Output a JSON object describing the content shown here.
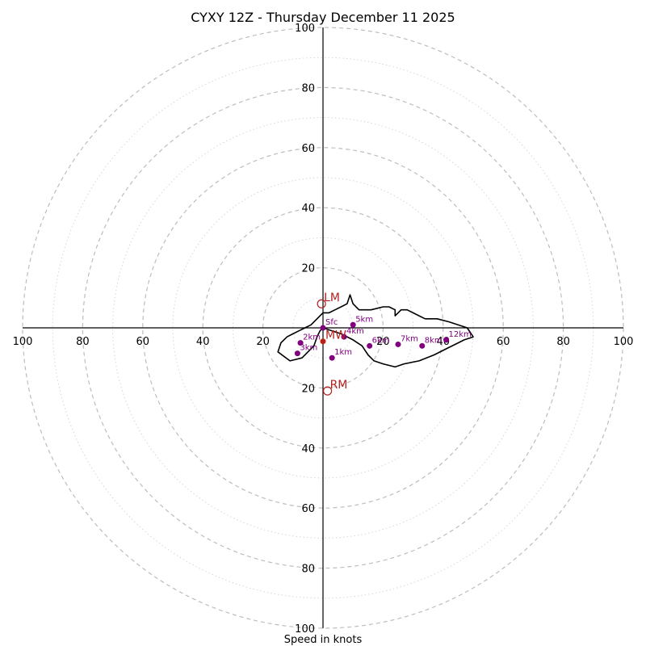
{
  "chart_data": {
    "type": "hodograph",
    "title": "CYXY 12Z - Thursday December 11 2025",
    "xlabel": "Speed in knots",
    "units": "knots",
    "range_max": 100,
    "rings_major": [
      20,
      40,
      60,
      80,
      100
    ],
    "rings_minor": [
      10,
      30,
      50,
      70,
      90
    ],
    "tick_labels": [
      "20",
      "40",
      "60",
      "80",
      "100"
    ],
    "trace_color": "#000000",
    "point_color": "#800080",
    "motion_color": "#b22222",
    "trace": [
      [
        0,
        0
      ],
      [
        3,
        -1
      ],
      [
        6,
        -2
      ],
      [
        10,
        -4
      ],
      [
        13,
        -6
      ],
      [
        15,
        -9
      ],
      [
        17,
        -11
      ],
      [
        20,
        -12
      ],
      [
        24,
        -13
      ],
      [
        27,
        -12
      ],
      [
        32,
        -11
      ],
      [
        37,
        -9
      ],
      [
        41,
        -7
      ],
      [
        45,
        -5
      ],
      [
        47,
        -4
      ],
      [
        50,
        -3
      ],
      [
        48,
        0
      ],
      [
        42,
        2
      ],
      [
        38,
        3
      ],
      [
        34,
        3
      ],
      [
        32,
        4
      ],
      [
        30,
        5
      ],
      [
        28,
        6
      ],
      [
        26,
        6
      ],
      [
        25,
        5
      ],
      [
        24,
        4
      ],
      [
        24,
        6
      ],
      [
        22,
        7
      ],
      [
        20,
        7
      ],
      [
        16,
        6
      ],
      [
        12,
        6
      ],
      [
        10,
        8
      ],
      [
        9,
        11
      ],
      [
        8,
        8
      ],
      [
        6,
        7
      ],
      [
        4,
        6
      ],
      [
        2,
        5
      ],
      [
        0,
        5
      ],
      [
        -1,
        4
      ],
      [
        -2,
        3
      ],
      [
        -4,
        1
      ],
      [
        -6,
        0
      ],
      [
        -8,
        -1
      ],
      [
        -10,
        -2
      ],
      [
        -12,
        -3
      ],
      [
        -14,
        -5
      ],
      [
        -15,
        -8
      ],
      [
        -11,
        -11
      ],
      [
        -7,
        -10
      ],
      [
        -3,
        -6
      ],
      [
        -2,
        -3
      ],
      [
        -1,
        -1
      ],
      [
        0,
        0
      ]
    ],
    "points": [
      {
        "label": "Sfc",
        "u": 0,
        "v": 0
      },
      {
        "label": "1km",
        "u": 3,
        "v": -10
      },
      {
        "label": "2km",
        "u": -7.5,
        "v": -5
      },
      {
        "label": "3km",
        "u": -8.5,
        "v": -8.5
      },
      {
        "label": "4km",
        "u": 7,
        "v": -3
      },
      {
        "label": "5km",
        "u": 10,
        "v": 1
      },
      {
        "label": "6km",
        "u": 15.5,
        "v": -6
      },
      {
        "label": "7km",
        "u": 25,
        "v": -5.5
      },
      {
        "label": "8km",
        "u": 33,
        "v": -6
      },
      {
        "label": "12km",
        "u": 41,
        "v": -4
      }
    ],
    "storm_motion": [
      {
        "label": "LM",
        "u": -0.5,
        "v": 8,
        "marker": "circle"
      },
      {
        "label": "RM",
        "u": 1.5,
        "v": -21,
        "marker": "circle"
      },
      {
        "label": "MW",
        "u": 0,
        "v": -4.5,
        "marker": "dot"
      }
    ]
  }
}
